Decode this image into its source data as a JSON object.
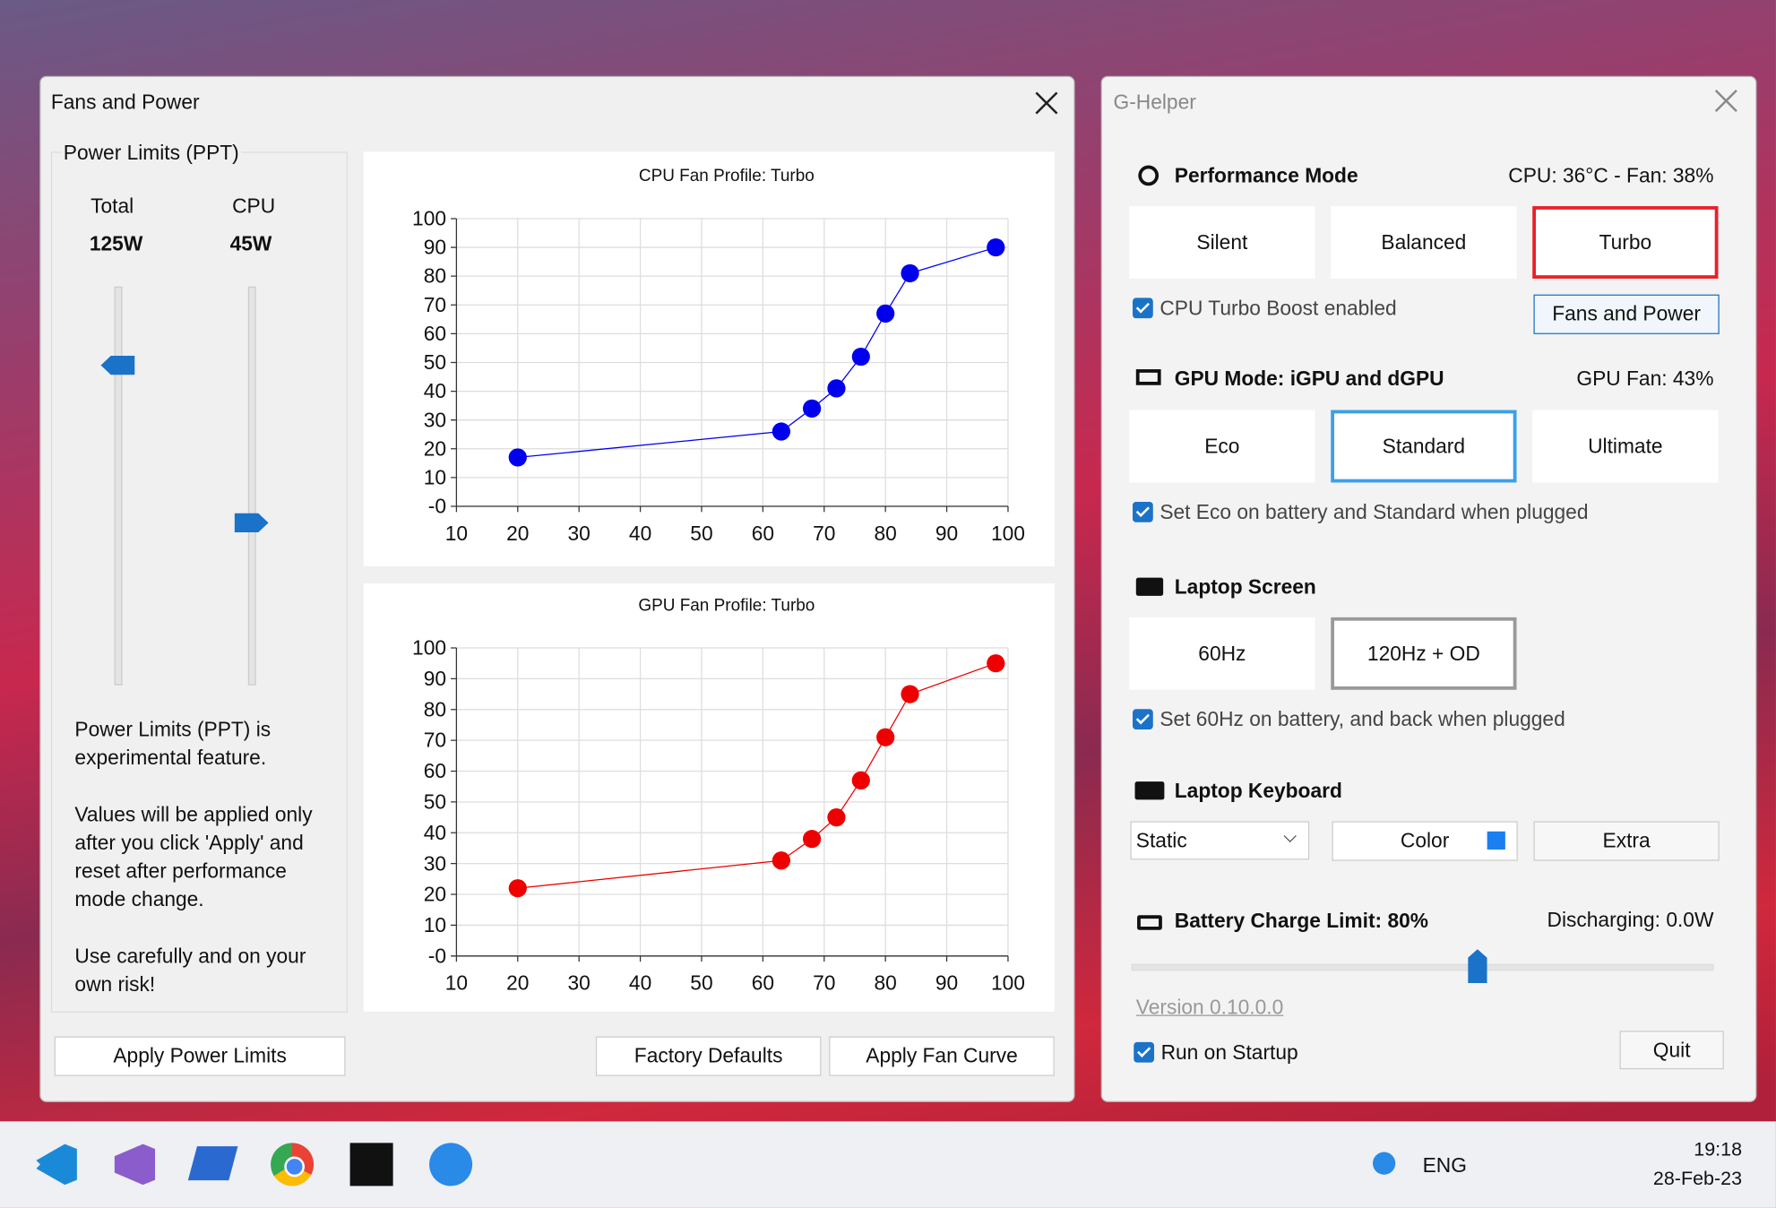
{
  "fans_window": {
    "title": "Fans and Power",
    "power_limits": {
      "title": "Power Limits (PPT)",
      "total_label": "Total",
      "total_value": "125W",
      "cpu_label": "CPU",
      "cpu_value": "45W",
      "notes": [
        "Power Limits (PPT) is experimental  feature.",
        "Values will be applied only after you click 'Apply' and reset after performance mode  change.",
        "Use carefully and on your own risk!"
      ]
    },
    "buttons": {
      "apply_power": "Apply Power Limits",
      "defaults": "Factory Defaults",
      "apply_fan": "Apply Fan Curve"
    }
  },
  "chart_data": [
    {
      "type": "line",
      "title": "CPU Fan Profile: Turbo",
      "x": [
        20,
        63,
        68,
        72,
        76,
        80,
        84,
        98
      ],
      "values": [
        17,
        26,
        34,
        41,
        52,
        67,
        81,
        90
      ],
      "color": "#0000ee",
      "xlim": [
        10,
        100
      ],
      "ylim": [
        0,
        100
      ],
      "xticks": [
        10,
        20,
        30,
        40,
        50,
        60,
        70,
        80,
        90,
        100
      ],
      "yticks": [
        {
          "value": 0,
          "label": "-0"
        },
        10,
        20,
        30,
        40,
        50,
        60,
        70,
        80,
        90,
        100
      ],
      "grid": true
    },
    {
      "type": "line",
      "title": "GPU Fan Profile: Turbo",
      "x": [
        20,
        63,
        68,
        72,
        76,
        80,
        84,
        98
      ],
      "values": [
        22,
        31,
        38,
        45,
        57,
        71,
        85,
        95
      ],
      "color": "#ee0000",
      "xlim": [
        10,
        100
      ],
      "ylim": [
        0,
        100
      ],
      "xticks": [
        10,
        20,
        30,
        40,
        50,
        60,
        70,
        80,
        90,
        100
      ],
      "yticks": [
        {
          "value": 0,
          "label": "-0"
        },
        10,
        20,
        30,
        40,
        50,
        60,
        70,
        80,
        90,
        100
      ],
      "grid": true
    }
  ],
  "ghelper": {
    "title": "G-Helper",
    "performance": {
      "heading": "Performance Mode",
      "status": "CPU: 36°C -  Fan: 38%",
      "modes": [
        "Silent",
        "Balanced",
        "Turbo"
      ],
      "turbo_boost": "CPU Turbo Boost enabled",
      "fans_button": "Fans and Power"
    },
    "gpu": {
      "heading": "GPU Mode: iGPU and dGPU",
      "status": "GPU Fan: 43%",
      "modes": [
        "Eco",
        "Standard",
        "Ultimate"
      ],
      "auto": "Set Eco on battery and Standard when plugged"
    },
    "screen": {
      "heading": "Laptop Screen",
      "modes": [
        "60Hz",
        "120Hz + OD"
      ],
      "auto": "Set 60Hz on battery, and back when plugged"
    },
    "keyboard": {
      "heading": "Laptop Keyboard",
      "mode": "Static",
      "color": "Color",
      "extra": "Extra"
    },
    "battery": {
      "heading": "Battery Charge Limit: 80%",
      "status": "Discharging: 0.0W"
    },
    "version": "Version 0.10.0.0",
    "startup": "Run on Startup",
    "quit": "Quit"
  },
  "taskbar": {
    "language": "ENG",
    "time": "19:18",
    "date": "28-Feb-23"
  }
}
